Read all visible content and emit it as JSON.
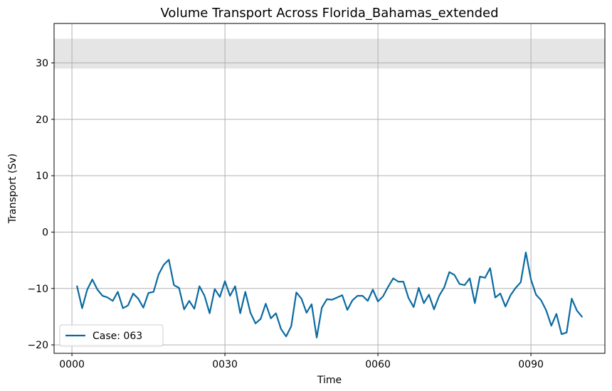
{
  "chart_data": {
    "type": "line",
    "title": "Volume Transport Across Florida_Bahamas_extended",
    "xlabel": "Time",
    "ylabel": "Transport (Sv)",
    "xlim": [
      -3.5,
      104.5
    ],
    "ylim": [
      -21.5,
      37
    ],
    "x_ticks": [
      {
        "value": 0,
        "label": "0000"
      },
      {
        "value": 30,
        "label": "0030"
      },
      {
        "value": 60,
        "label": "0060"
      },
      {
        "value": 90,
        "label": "0090"
      }
    ],
    "y_ticks": [
      {
        "value": -20,
        "label": "−20"
      },
      {
        "value": -10,
        "label": "−10"
      },
      {
        "value": 0,
        "label": "0"
      },
      {
        "value": 10,
        "label": "10"
      },
      {
        "value": 20,
        "label": "20"
      },
      {
        "value": 30,
        "label": "30"
      }
    ],
    "grid": true,
    "shaded_band": {
      "y_min": 29,
      "y_max": 34.3,
      "color": "#e5e5e5"
    },
    "legend_position": "lower-left",
    "series": [
      {
        "name": "Case: 063",
        "color": "#0a6aa1",
        "x": [
          1,
          2,
          3,
          4,
          5,
          6,
          7,
          8,
          9,
          10,
          11,
          12,
          13,
          14,
          15,
          16,
          17,
          18,
          19,
          20,
          21,
          22,
          23,
          24,
          25,
          26,
          27,
          28,
          29,
          30,
          31,
          32,
          33,
          34,
          35,
          36,
          37,
          38,
          39,
          40,
          41,
          42,
          43,
          44,
          45,
          46,
          47,
          48,
          49,
          50,
          51,
          52,
          53,
          54,
          55,
          56,
          57,
          58,
          59,
          60,
          61,
          62,
          63,
          64,
          65,
          66,
          67,
          68,
          69,
          70,
          71,
          72,
          73,
          74,
          75,
          76,
          77,
          78,
          79,
          80,
          81,
          82,
          83,
          84,
          85,
          86,
          87,
          88,
          89,
          90,
          91,
          92,
          93,
          94,
          95,
          96,
          97,
          98,
          99,
          100
        ],
        "values": [
          -9.6,
          -13.5,
          -10.2,
          -8.4,
          -10.2,
          -11.3,
          -11.6,
          -12.2,
          -10.6,
          -13.5,
          -13.0,
          -10.9,
          -11.8,
          -13.4,
          -10.8,
          -10.6,
          -7.5,
          -5.8,
          -4.9,
          -9.4,
          -9.9,
          -13.7,
          -12.2,
          -13.6,
          -9.6,
          -11.3,
          -14.4,
          -10.1,
          -11.5,
          -8.7,
          -11.3,
          -9.6,
          -14.4,
          -10.6,
          -14.3,
          -16.2,
          -15.4,
          -12.7,
          -15.3,
          -14.4,
          -17.2,
          -18.5,
          -16.7,
          -10.7,
          -11.8,
          -14.3,
          -12.8,
          -18.7,
          -13.4,
          -11.9,
          -12.0,
          -11.6,
          -11.2,
          -13.8,
          -12.1,
          -11.3,
          -11.3,
          -12.2,
          -10.2,
          -12.3,
          -11.4,
          -9.7,
          -8.2,
          -8.8,
          -8.8,
          -11.7,
          -13.3,
          -9.9,
          -12.6,
          -11.1,
          -13.7,
          -11.3,
          -9.8,
          -7.1,
          -7.6,
          -9.2,
          -9.4,
          -8.2,
          -12.6,
          -7.9,
          -8.1,
          -6.4,
          -11.6,
          -10.9,
          -13.2,
          -11.2,
          -9.9,
          -8.9,
          -3.6,
          -8.4,
          -11.1,
          -12.1,
          -13.9,
          -16.6,
          -14.5,
          -18.1,
          -17.8,
          -11.8,
          -13.9,
          -15.0
        ]
      }
    ]
  }
}
